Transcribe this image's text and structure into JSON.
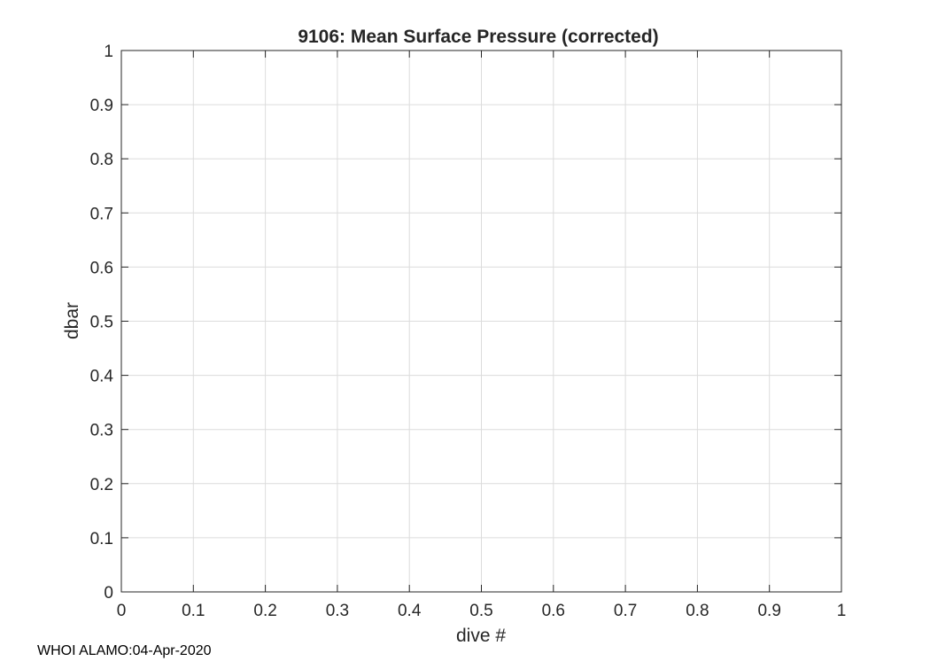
{
  "chart_data": {
    "type": "line",
    "title": "9106: Mean Surface Pressure (corrected)",
    "xlabel": "dive #",
    "ylabel": "dbar",
    "xlim": [
      0,
      1
    ],
    "ylim": [
      0,
      1
    ],
    "x_ticks": [
      0,
      0.1,
      0.2,
      0.3,
      0.4,
      0.5,
      0.6,
      0.7,
      0.8,
      0.9,
      1
    ],
    "x_tick_labels": [
      "0",
      "0.1",
      "0.2",
      "0.3",
      "0.4",
      "0.5",
      "0.6",
      "0.7",
      "0.8",
      "0.9",
      "1"
    ],
    "y_ticks": [
      0,
      0.1,
      0.2,
      0.3,
      0.4,
      0.5,
      0.6,
      0.7,
      0.8,
      0.9,
      1
    ],
    "y_tick_labels": [
      "0",
      "0.1",
      "0.2",
      "0.3",
      "0.4",
      "0.5",
      "0.6",
      "0.7",
      "0.8",
      "0.9",
      "1"
    ],
    "grid": true,
    "series": []
  },
  "footer": {
    "text": "WHOI ALAMO:04-Apr-2020"
  },
  "colors": {
    "axis": "#262626",
    "grid": "#dcdcdc",
    "background": "#ffffff"
  }
}
